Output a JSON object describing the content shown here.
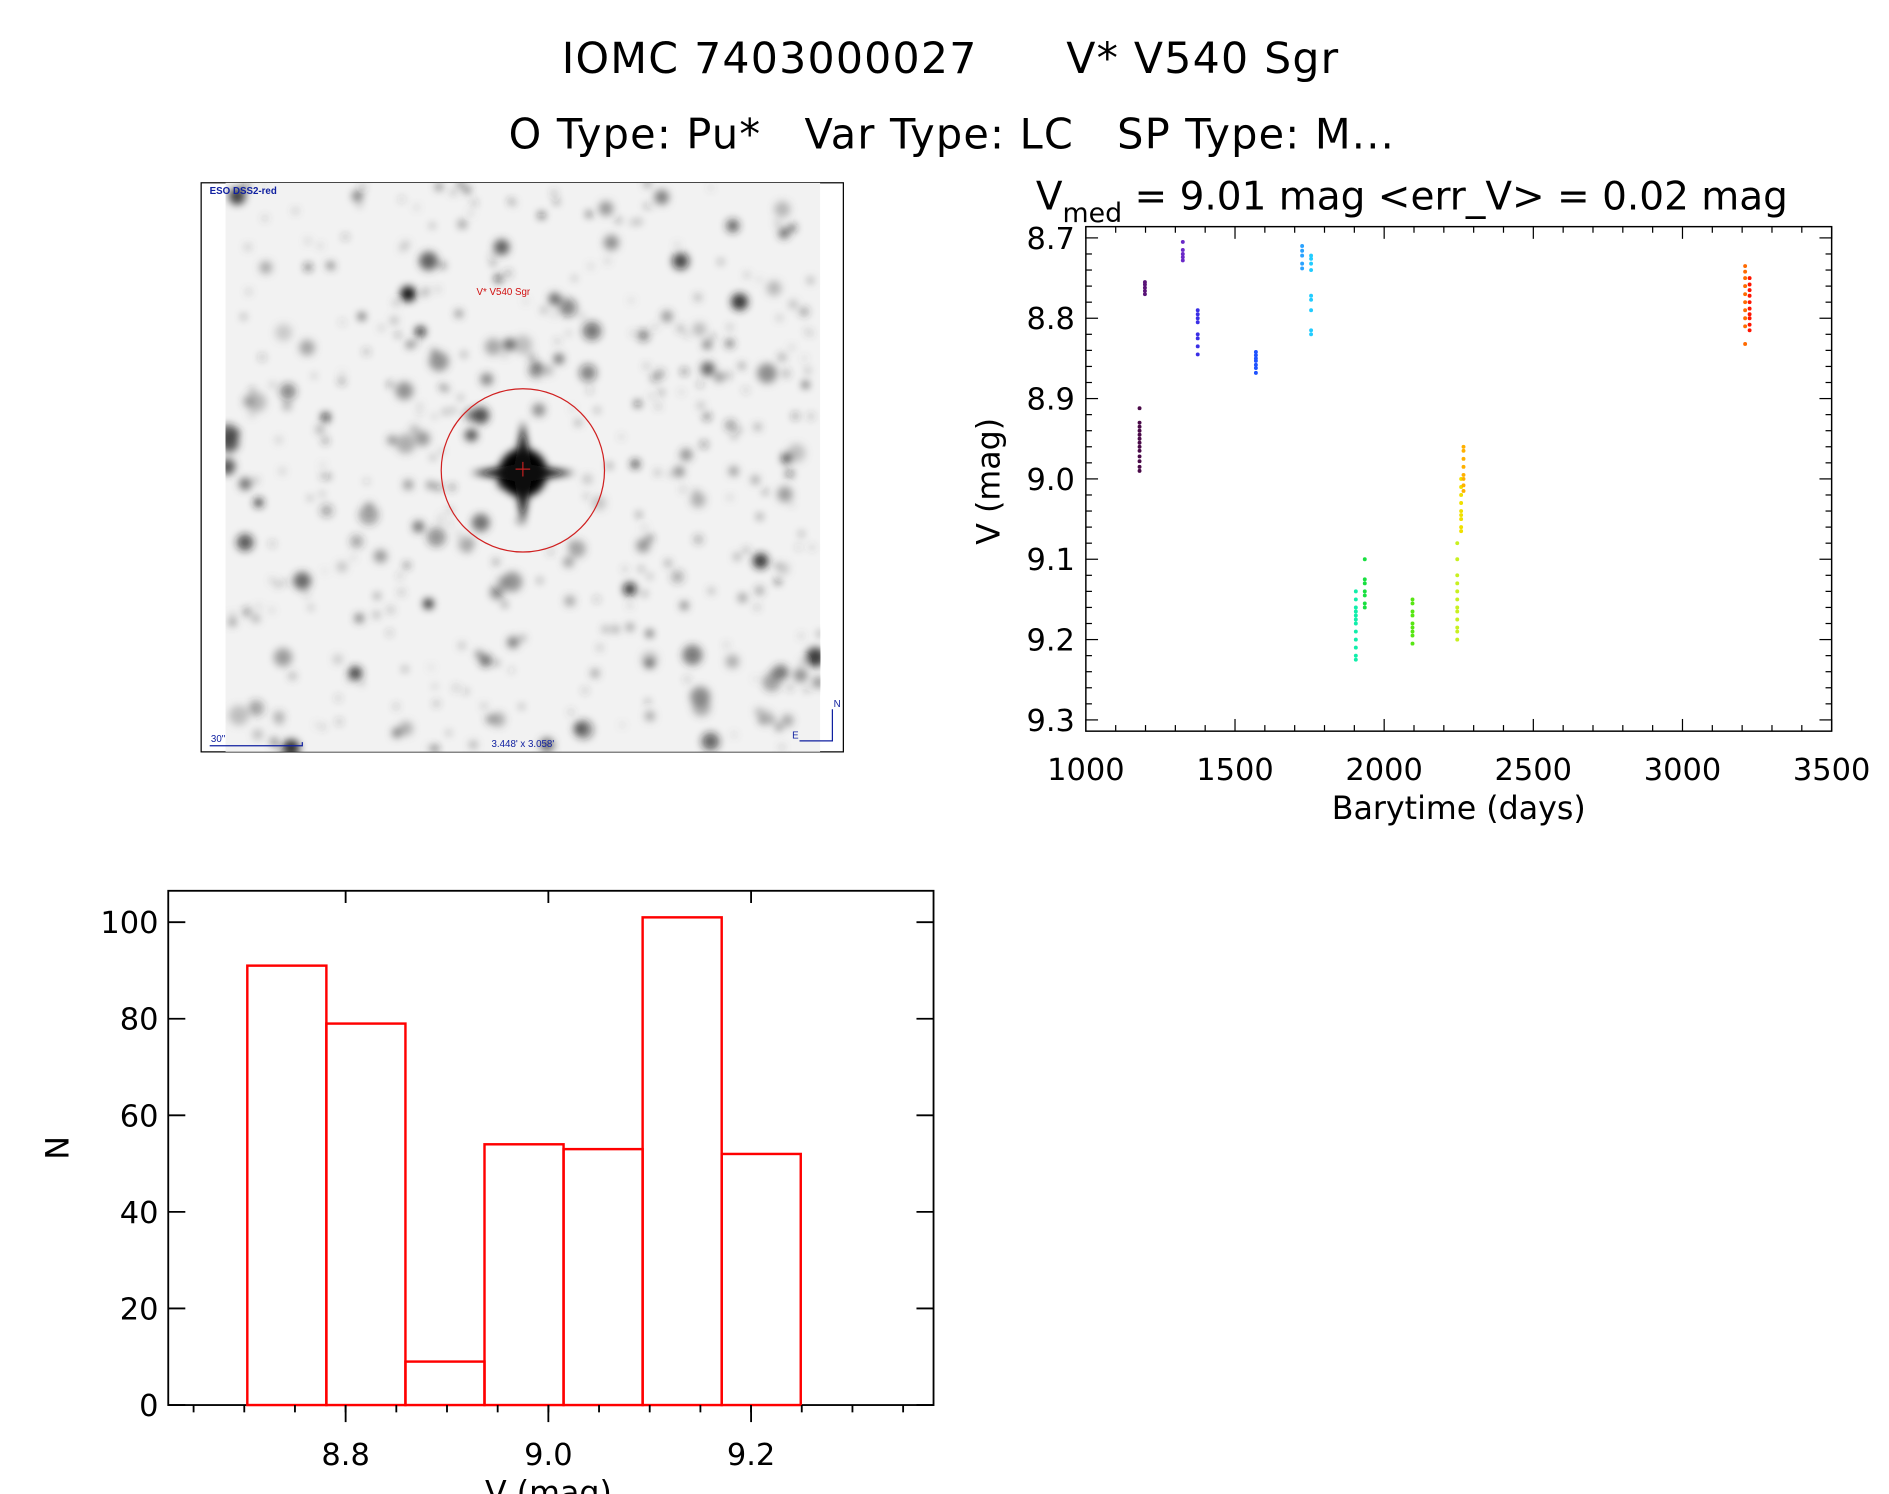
{
  "header": {
    "object_id": "IOMC 7403000027",
    "object_name": "V* V540 Sgr",
    "line2": "O Type: Pu*   Var Type: LC   SP Type: M..."
  },
  "image_panel": {
    "survey": "ESO DSS2-red",
    "target_label": "V* V540 Sgr",
    "scale_label": "30\"",
    "fov_label": "3.448' x 3.058'",
    "north": "N",
    "east": "E"
  },
  "chart_data": [
    {
      "type": "scatter",
      "title_main": "V",
      "title_sub": "med",
      "title_rest": " = 9.01 mag <err_V> = 0.02 mag",
      "xlabel": "Barytime (days)",
      "ylabel": "V (mag)",
      "xlim": [
        1000,
        3500
      ],
      "ylim": [
        8.686,
        9.314
      ],
      "y_inverted": true,
      "xticks": [
        1000,
        1500,
        2000,
        2500,
        3000,
        3500
      ],
      "yticks": [
        "8.7",
        "8.8",
        "8.9",
        "9.0",
        "9.1",
        "9.2",
        "9.3"
      ],
      "series": [
        {
          "x": 1180,
          "color": "#4a0a48",
          "y": [
            8.912,
            8.93,
            8.935,
            8.94,
            8.945,
            8.95,
            8.955,
            8.96,
            8.965,
            8.972,
            8.978,
            8.985,
            8.99
          ]
        },
        {
          "x": 1198,
          "color": "#5a1478",
          "y": [
            8.755,
            8.758,
            8.762,
            8.766,
            8.77
          ]
        },
        {
          "x": 1325,
          "color": "#6a28c8",
          "y": [
            8.705,
            8.715,
            8.72,
            8.724,
            8.728
          ]
        },
        {
          "x": 1375,
          "color": "#3a2ee6",
          "y": [
            8.79,
            8.795,
            8.8,
            8.805,
            8.82,
            8.825,
            8.835,
            8.845
          ]
        },
        {
          "x": 1570,
          "color": "#1e52ff",
          "y": [
            8.842,
            8.846,
            8.85,
            8.853,
            8.858,
            8.862,
            8.868
          ]
        },
        {
          "x": 1725,
          "color": "#2aa2ff",
          "y": [
            8.71,
            8.716,
            8.722,
            8.732,
            8.738
          ]
        },
        {
          "x": 1755,
          "color": "#22ccff",
          "y": [
            8.722,
            8.726,
            8.732,
            8.74,
            8.772,
            8.777,
            8.79,
            8.815,
            8.82
          ]
        },
        {
          "x": 1905,
          "color": "#10eeaa",
          "y": [
            9.14,
            9.15,
            9.16,
            9.165,
            9.17,
            9.175,
            9.18,
            9.19,
            9.2,
            9.21,
            9.22,
            9.225
          ]
        },
        {
          "x": 1935,
          "color": "#18e040",
          "y": [
            9.1,
            9.125,
            9.13,
            9.14,
            9.145,
            9.155,
            9.16
          ]
        },
        {
          "x": 2095,
          "color": "#58e614",
          "y": [
            9.15,
            9.155,
            9.165,
            9.17,
            9.18,
            9.185,
            9.19,
            9.195,
            9.205
          ]
        },
        {
          "x": 2245,
          "color": "#c8f020",
          "y": [
            9.08,
            9.1,
            9.12,
            9.13,
            9.14,
            9.15,
            9.16,
            9.165,
            9.175,
            9.185,
            9.19,
            9.2
          ]
        },
        {
          "x": 2258,
          "color": "#f0e000",
          "y": [
            9.0,
            9.01,
            9.02,
            9.03,
            9.04,
            9.045,
            9.05,
            9.06,
            9.065
          ]
        },
        {
          "x": 2266,
          "color": "#ffb000",
          "y": [
            8.96,
            8.965,
            8.975,
            8.985,
            8.995,
            9.0,
            9.008,
            9.015
          ]
        },
        {
          "x": 3210,
          "color": "#ff6a00",
          "y": [
            8.735,
            8.742,
            8.75,
            8.76,
            8.77,
            8.78,
            8.79,
            8.8,
            8.81,
            8.832
          ]
        },
        {
          "x": 3225,
          "color": "#ff1400",
          "y": [
            8.75,
            8.758,
            8.765,
            8.772,
            8.78,
            8.788,
            8.795,
            8.8,
            8.808,
            8.815
          ]
        }
      ]
    },
    {
      "type": "bar",
      "histogram": true,
      "xlabel": "V (mag)",
      "ylabel": "N",
      "xlim": [
        8.625,
        9.38
      ],
      "ylim": [
        0,
        106.5
      ],
      "xticks": [
        "8.8",
        "9.0",
        "9.2"
      ],
      "yticks": [
        "0",
        "20",
        "40",
        "60",
        "80",
        "100"
      ],
      "bin_edges": [
        8.703,
        8.781,
        8.859,
        8.937,
        9.015,
        9.093,
        9.171,
        9.249
      ],
      "values": [
        91,
        79,
        9,
        54,
        53,
        101,
        52
      ],
      "color": "#ff0000"
    }
  ]
}
